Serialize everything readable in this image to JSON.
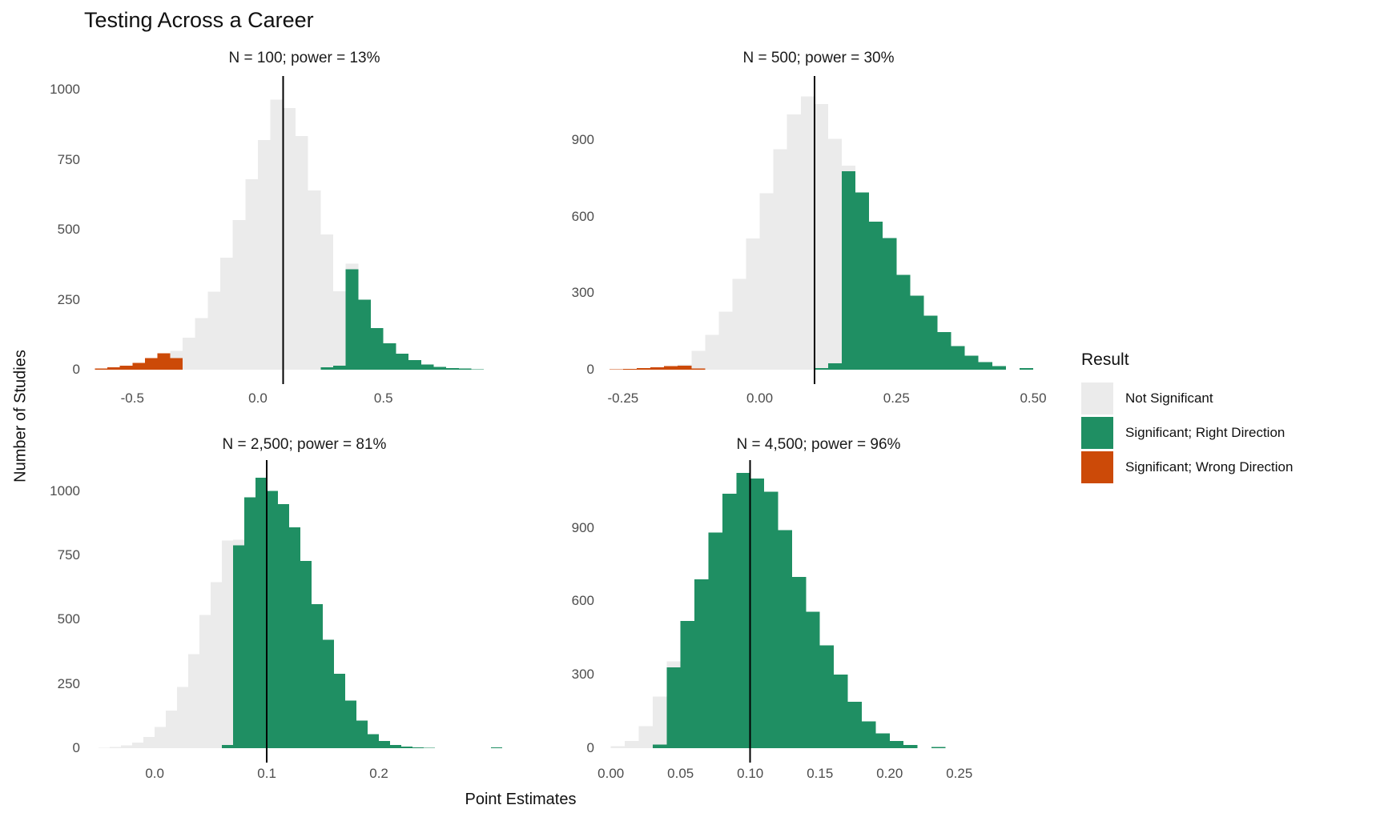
{
  "title": "Testing Across a Career",
  "axes": {
    "x_title": "Point Estimates",
    "y_title": "Number of Studies"
  },
  "legend": {
    "title": "Result",
    "items": [
      {
        "key": "ns",
        "label": "Not Significant",
        "color": "#EBEBEB"
      },
      {
        "key": "right",
        "label": "Significant; Right Direction",
        "color": "#1F8F63"
      },
      {
        "key": "wrong",
        "label": "Significant; Wrong Direction",
        "color": "#CC4A08"
      }
    ]
  },
  "colors": {
    "ns": "#EBEBEB",
    "right": "#1F8F63",
    "wrong": "#CC4A08",
    "reference_line": "#000000"
  },
  "chart_data": {
    "type": "bar",
    "subtype": "faceted-histogram",
    "title": "Testing Across a Career",
    "xlabel": "Point Estimates",
    "ylabel": "Number of Studies",
    "grid": "off",
    "legend_position": "right",
    "reference_line_x": 0.1,
    "series_note": "bins are [bin_left_edge, not_significant_count, significant_right_count, significant_wrong_count]",
    "panels": [
      {
        "title": "N = 100; power = 13%",
        "n": "100",
        "power": "13%",
        "x_domain": [
          -0.67,
          1.04
        ],
        "bin_width": 0.05,
        "x_ticks": [
          {
            "v": -0.5,
            "t": "-0.5"
          },
          {
            "v": 0.0,
            "t": "0.0"
          },
          {
            "v": 0.5,
            "t": "0.5"
          }
        ],
        "y_ticks": [
          {
            "v": 0,
            "t": "0"
          },
          {
            "v": 250,
            "t": "250"
          },
          {
            "v": 500,
            "t": "500"
          },
          {
            "v": 750,
            "t": "750"
          },
          {
            "v": 1000,
            "t": "1000"
          }
        ],
        "bins": [
          [
            -0.65,
            0,
            0,
            5
          ],
          [
            -0.6,
            0,
            0,
            9
          ],
          [
            -0.55,
            0,
            0,
            15
          ],
          [
            -0.5,
            0,
            0,
            25
          ],
          [
            -0.45,
            0,
            0,
            42
          ],
          [
            -0.4,
            0,
            0,
            58
          ],
          [
            -0.35,
            25,
            0,
            42
          ],
          [
            -0.3,
            115,
            0,
            0
          ],
          [
            -0.25,
            185,
            0,
            0
          ],
          [
            -0.2,
            278,
            0,
            0
          ],
          [
            -0.15,
            400,
            0,
            0
          ],
          [
            -0.1,
            535,
            0,
            0
          ],
          [
            -0.05,
            680,
            0,
            0
          ],
          [
            0.0,
            820,
            0,
            0
          ],
          [
            0.05,
            965,
            0,
            0
          ],
          [
            0.1,
            935,
            0,
            0
          ],
          [
            0.15,
            835,
            0,
            0
          ],
          [
            0.2,
            640,
            0,
            0
          ],
          [
            0.25,
            475,
            8,
            0
          ],
          [
            0.3,
            265,
            15,
            0
          ],
          [
            0.35,
            20,
            358,
            0
          ],
          [
            0.4,
            0,
            250,
            0
          ],
          [
            0.45,
            0,
            148,
            0
          ],
          [
            0.5,
            0,
            95,
            0
          ],
          [
            0.55,
            0,
            57,
            0
          ],
          [
            0.6,
            0,
            35,
            0
          ],
          [
            0.65,
            0,
            18,
            0
          ],
          [
            0.7,
            0,
            10,
            0
          ],
          [
            0.75,
            0,
            6,
            0
          ],
          [
            0.8,
            0,
            4,
            0
          ],
          [
            0.85,
            0,
            2,
            0
          ]
        ]
      },
      {
        "title": "N = 500; power = 30%",
        "n": "500",
        "power": "30%",
        "x_domain": [
          -0.285,
          0.5
        ],
        "bin_width": 0.025,
        "x_ticks": [
          {
            "v": -0.25,
            "t": "-0.25"
          },
          {
            "v": 0.0,
            "t": "0.00"
          },
          {
            "v": 0.25,
            "t": "0.25"
          },
          {
            "v": 0.5,
            "t": "0.50"
          }
        ],
        "y_ticks": [
          {
            "v": 0,
            "t": "0"
          },
          {
            "v": 300,
            "t": "300"
          },
          {
            "v": 600,
            "t": "600"
          },
          {
            "v": 900,
            "t": "900"
          }
        ],
        "bins": [
          [
            -0.275,
            0,
            0,
            2
          ],
          [
            -0.25,
            0,
            0,
            3
          ],
          [
            -0.225,
            0,
            0,
            6
          ],
          [
            -0.2,
            0,
            0,
            10
          ],
          [
            -0.175,
            0,
            0,
            14
          ],
          [
            -0.15,
            5,
            0,
            15
          ],
          [
            -0.125,
            70,
            0,
            4
          ],
          [
            -0.1,
            136,
            0,
            0
          ],
          [
            -0.075,
            228,
            0,
            0
          ],
          [
            -0.05,
            356,
            0,
            0
          ],
          [
            -0.025,
            514,
            0,
            0
          ],
          [
            0.0,
            691,
            0,
            0
          ],
          [
            0.025,
            863,
            0,
            0
          ],
          [
            0.05,
            1000,
            0,
            0
          ],
          [
            0.075,
            1070,
            0,
            0
          ],
          [
            0.1,
            1035,
            6,
            0
          ],
          [
            0.125,
            880,
            25,
            0
          ],
          [
            0.15,
            22,
            778,
            0
          ],
          [
            0.175,
            0,
            695,
            0
          ],
          [
            0.2,
            0,
            580,
            0
          ],
          [
            0.225,
            0,
            515,
            0
          ],
          [
            0.25,
            0,
            372,
            0
          ],
          [
            0.275,
            0,
            290,
            0
          ],
          [
            0.3,
            0,
            212,
            0
          ],
          [
            0.325,
            0,
            148,
            0
          ],
          [
            0.35,
            0,
            92,
            0
          ],
          [
            0.375,
            0,
            55,
            0
          ],
          [
            0.4,
            0,
            30,
            0
          ],
          [
            0.425,
            0,
            14,
            0
          ],
          [
            0.475,
            0,
            6,
            0
          ]
        ]
      },
      {
        "title": "N = 2,500; power = 81%",
        "n": "2,500",
        "power": "81%",
        "x_domain": [
          -0.058,
          0.325
        ],
        "bin_width": 0.01,
        "x_ticks": [
          {
            "v": 0.0,
            "t": "0.0"
          },
          {
            "v": 0.1,
            "t": "0.1"
          },
          {
            "v": 0.2,
            "t": "0.2"
          }
        ],
        "y_ticks": [
          {
            "v": 0,
            "t": "0"
          },
          {
            "v": 250,
            "t": "250"
          },
          {
            "v": 500,
            "t": "500"
          },
          {
            "v": 750,
            "t": "750"
          },
          {
            "v": 1000,
            "t": "1000"
          }
        ],
        "bins": [
          [
            -0.05,
            2,
            0,
            0
          ],
          [
            -0.04,
            5,
            0,
            0
          ],
          [
            -0.03,
            11,
            0,
            0
          ],
          [
            -0.02,
            22,
            0,
            0
          ],
          [
            -0.01,
            43,
            0,
            0
          ],
          [
            0.0,
            82,
            0,
            0
          ],
          [
            0.01,
            146,
            0,
            0
          ],
          [
            0.02,
            238,
            0,
            0
          ],
          [
            0.03,
            366,
            0,
            0
          ],
          [
            0.04,
            518,
            0,
            0
          ],
          [
            0.05,
            645,
            0,
            0
          ],
          [
            0.06,
            795,
            12,
            0
          ],
          [
            0.07,
            22,
            788,
            0
          ],
          [
            0.08,
            0,
            975,
            0
          ],
          [
            0.09,
            0,
            1052,
            0
          ],
          [
            0.1,
            0,
            1000,
            0
          ],
          [
            0.11,
            0,
            948,
            0
          ],
          [
            0.12,
            0,
            858,
            0
          ],
          [
            0.13,
            0,
            728,
            0
          ],
          [
            0.14,
            0,
            560,
            0
          ],
          [
            0.15,
            0,
            422,
            0
          ],
          [
            0.16,
            0,
            290,
            0
          ],
          [
            0.17,
            0,
            185,
            0
          ],
          [
            0.18,
            0,
            108,
            0
          ],
          [
            0.19,
            0,
            55,
            0
          ],
          [
            0.2,
            0,
            28,
            0
          ],
          [
            0.21,
            0,
            13,
            0
          ],
          [
            0.22,
            0,
            6,
            0
          ],
          [
            0.23,
            0,
            3,
            0
          ],
          [
            0.24,
            0,
            2,
            0
          ],
          [
            0.3,
            0,
            3,
            0
          ]
        ]
      },
      {
        "title": "N = 4,500; power = 96%",
        "n": "4,500",
        "power": "96%",
        "x_domain": [
          -0.005,
          0.303
        ],
        "bin_width": 0.01,
        "x_ticks": [
          {
            "v": 0.0,
            "t": "0.00"
          },
          {
            "v": 0.05,
            "t": "0.05"
          },
          {
            "v": 0.1,
            "t": "0.10"
          },
          {
            "v": 0.15,
            "t": "0.15"
          },
          {
            "v": 0.2,
            "t": "0.20"
          },
          {
            "v": 0.25,
            "t": "0.25"
          }
        ],
        "y_ticks": [
          {
            "v": 0,
            "t": "0"
          },
          {
            "v": 300,
            "t": "300"
          },
          {
            "v": 600,
            "t": "600"
          },
          {
            "v": 900,
            "t": "900"
          }
        ],
        "bins": [
          [
            0.0,
            9,
            0,
            0
          ],
          [
            0.01,
            30,
            0,
            0
          ],
          [
            0.02,
            90,
            0,
            0
          ],
          [
            0.03,
            195,
            15,
            0
          ],
          [
            0.04,
            25,
            330,
            0
          ],
          [
            0.05,
            0,
            520,
            0
          ],
          [
            0.06,
            0,
            690,
            0
          ],
          [
            0.07,
            0,
            880,
            0
          ],
          [
            0.08,
            0,
            1040,
            0
          ],
          [
            0.09,
            0,
            1125,
            0
          ],
          [
            0.1,
            0,
            1102,
            0
          ],
          [
            0.11,
            0,
            1048,
            0
          ],
          [
            0.12,
            0,
            890,
            0
          ],
          [
            0.13,
            0,
            700,
            0
          ],
          [
            0.14,
            0,
            558,
            0
          ],
          [
            0.15,
            0,
            420,
            0
          ],
          [
            0.16,
            0,
            300,
            0
          ],
          [
            0.17,
            0,
            190,
            0
          ],
          [
            0.18,
            0,
            110,
            0
          ],
          [
            0.19,
            0,
            60,
            0
          ],
          [
            0.2,
            0,
            30,
            0
          ],
          [
            0.21,
            0,
            13,
            0
          ],
          [
            0.23,
            0,
            5,
            0
          ]
        ]
      }
    ]
  }
}
